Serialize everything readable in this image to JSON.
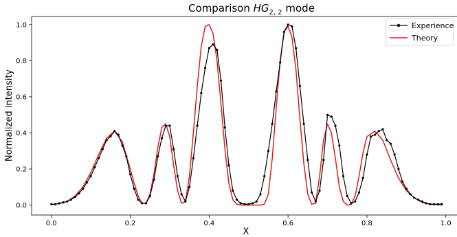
{
  "chart_data": {
    "type": "line",
    "title": {
      "prefix": "Comparison ",
      "mode_name": "HG",
      "subscript": "2, 2",
      "suffix": " mode"
    },
    "xlabel": "X",
    "ylabel": "Normalized intensity",
    "xlim": [
      -0.05,
      1.03
    ],
    "ylim": [
      -0.055,
      1.045
    ],
    "xticks": [
      "0.0",
      "0.2",
      "0.4",
      "0.6",
      "0.8",
      "1.0"
    ],
    "yticks": [
      "0.0",
      "0.2",
      "0.4",
      "0.6",
      "0.8",
      "1.0"
    ],
    "grid": false,
    "legend_position": "top-right",
    "series": [
      {
        "name": "Experience",
        "color": "#000000",
        "marker": "dot",
        "x": [
          0.0,
          0.01,
          0.02,
          0.03,
          0.04,
          0.05,
          0.06,
          0.07,
          0.08,
          0.09,
          0.1,
          0.11,
          0.12,
          0.13,
          0.14,
          0.15,
          0.16,
          0.17,
          0.18,
          0.19,
          0.2,
          0.21,
          0.22,
          0.23,
          0.24,
          0.25,
          0.26,
          0.27,
          0.28,
          0.29,
          0.3,
          0.31,
          0.32,
          0.33,
          0.34,
          0.35,
          0.36,
          0.37,
          0.38,
          0.39,
          0.4,
          0.41,
          0.42,
          0.43,
          0.44,
          0.45,
          0.46,
          0.47,
          0.48,
          0.49,
          0.5,
          0.51,
          0.52,
          0.53,
          0.54,
          0.55,
          0.56,
          0.57,
          0.58,
          0.59,
          0.6,
          0.61,
          0.62,
          0.63,
          0.64,
          0.65,
          0.66,
          0.67,
          0.68,
          0.69,
          0.7,
          0.71,
          0.72,
          0.73,
          0.74,
          0.75,
          0.76,
          0.77,
          0.78,
          0.79,
          0.8,
          0.81,
          0.82,
          0.83,
          0.84,
          0.85,
          0.86,
          0.87,
          0.88,
          0.89,
          0.9,
          0.91,
          0.92,
          0.93,
          0.94,
          0.95,
          0.96,
          0.97,
          0.98,
          0.99
        ],
        "y": [
          0.005,
          0.005,
          0.01,
          0.015,
          0.02,
          0.03,
          0.045,
          0.065,
          0.09,
          0.125,
          0.16,
          0.21,
          0.26,
          0.31,
          0.36,
          0.38,
          0.41,
          0.39,
          0.33,
          0.27,
          0.17,
          0.09,
          0.03,
          0.01,
          0.01,
          0.05,
          0.14,
          0.27,
          0.37,
          0.44,
          0.44,
          0.31,
          0.16,
          0.06,
          0.02,
          0.1,
          0.26,
          0.44,
          0.62,
          0.76,
          0.87,
          0.89,
          0.86,
          0.69,
          0.43,
          0.22,
          0.08,
          0.03,
          0.01,
          0.005,
          0.005,
          0.01,
          0.02,
          0.06,
          0.16,
          0.3,
          0.45,
          0.63,
          0.79,
          0.96,
          1.0,
          0.99,
          0.87,
          0.66,
          0.45,
          0.25,
          0.07,
          0.02,
          0.08,
          0.25,
          0.5,
          0.49,
          0.44,
          0.33,
          0.16,
          0.05,
          0.01,
          0.02,
          0.07,
          0.15,
          0.28,
          0.38,
          0.39,
          0.41,
          0.42,
          0.36,
          0.34,
          0.28,
          0.2,
          0.13,
          0.09,
          0.06,
          0.04,
          0.03,
          0.02,
          0.01,
          0.005,
          0.005,
          0.005,
          0.005
        ]
      },
      {
        "name": "Theory",
        "color": "#e41a1c",
        "marker": "none",
        "x": [
          0.0,
          0.02,
          0.04,
          0.06,
          0.08,
          0.1,
          0.12,
          0.14,
          0.16,
          0.18,
          0.2,
          0.21,
          0.22,
          0.23,
          0.24,
          0.25,
          0.26,
          0.27,
          0.28,
          0.29,
          0.3,
          0.31,
          0.32,
          0.33,
          0.34,
          0.35,
          0.36,
          0.37,
          0.38,
          0.39,
          0.4,
          0.41,
          0.42,
          0.43,
          0.44,
          0.45,
          0.46,
          0.47,
          0.48,
          0.49,
          0.5,
          0.51,
          0.52,
          0.53,
          0.54,
          0.55,
          0.56,
          0.57,
          0.58,
          0.59,
          0.6,
          0.61,
          0.62,
          0.63,
          0.64,
          0.65,
          0.66,
          0.67,
          0.68,
          0.69,
          0.7,
          0.71,
          0.72,
          0.73,
          0.74,
          0.75,
          0.76,
          0.77,
          0.78,
          0.79,
          0.8,
          0.82,
          0.84,
          0.86,
          0.88,
          0.9,
          0.92,
          0.94,
          0.96,
          0.98,
          0.99
        ],
        "y": [
          0.002,
          0.008,
          0.02,
          0.05,
          0.1,
          0.18,
          0.28,
          0.37,
          0.41,
          0.35,
          0.2,
          0.12,
          0.05,
          0.01,
          0.01,
          0.06,
          0.17,
          0.32,
          0.43,
          0.45,
          0.38,
          0.22,
          0.08,
          0.01,
          0.02,
          0.16,
          0.4,
          0.66,
          0.88,
          0.99,
          1.0,
          0.95,
          0.8,
          0.56,
          0.31,
          0.12,
          0.03,
          0.005,
          0.0,
          0.0,
          0.0,
          0.0,
          0.0,
          0.0,
          0.005,
          0.06,
          0.26,
          0.54,
          0.8,
          0.96,
          0.99,
          0.93,
          0.75,
          0.48,
          0.23,
          0.06,
          0.005,
          0.01,
          0.16,
          0.36,
          0.45,
          0.4,
          0.26,
          0.1,
          0.02,
          0.0,
          0.005,
          0.05,
          0.16,
          0.29,
          0.38,
          0.41,
          0.36,
          0.25,
          0.15,
          0.08,
          0.04,
          0.015,
          0.005,
          0.002,
          0.001
        ]
      }
    ]
  }
}
